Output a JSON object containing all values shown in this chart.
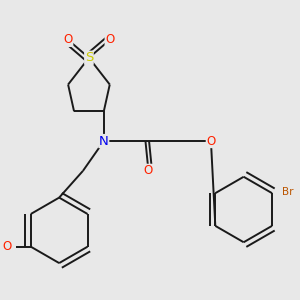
{
  "bg_color": "#e8e8e8",
  "bond_color": "#1a1a1a",
  "bond_width": 1.4,
  "atom_colors": {
    "S": "#cccc00",
    "O": "#ff2200",
    "N": "#0000ee",
    "Br": "#bb5500",
    "C": "#1a1a1a"
  },
  "font_size": 8.5,
  "figsize": [
    3.0,
    3.0
  ],
  "dpi": 100
}
